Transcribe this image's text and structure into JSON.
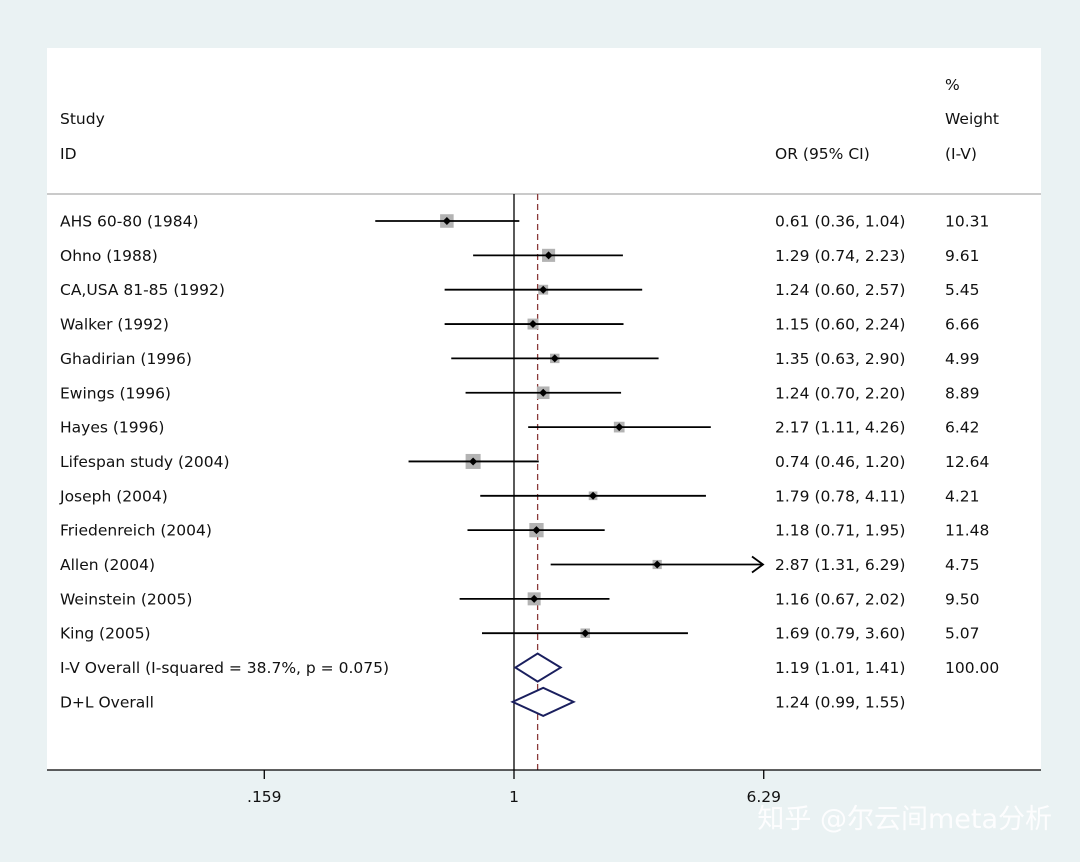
{
  "chart_data": {
    "type": "forest",
    "header": {
      "study_line1": "Study",
      "study_line2": "ID",
      "or_label": "OR (95% CI)",
      "weight_line1": "%",
      "weight_line2": "Weight",
      "weight_line3": "(I-V)"
    },
    "studies": [
      {
        "id": "AHS 60-80 (1984)",
        "or": 0.61,
        "lo": 0.36,
        "hi": 1.04,
        "ci_text": "0.61 (0.36, 1.04)",
        "weight": "10.31"
      },
      {
        "id": "Ohno (1988)",
        "or": 1.29,
        "lo": 0.74,
        "hi": 2.23,
        "ci_text": "1.29 (0.74, 2.23)",
        "weight": "9.61"
      },
      {
        "id": "CA,USA 81-85 (1992)",
        "or": 1.24,
        "lo": 0.6,
        "hi": 2.57,
        "ci_text": "1.24 (0.60, 2.57)",
        "weight": "5.45"
      },
      {
        "id": "Walker (1992)",
        "or": 1.15,
        "lo": 0.6,
        "hi": 2.24,
        "ci_text": "1.15 (0.60, 2.24)",
        "weight": "6.66"
      },
      {
        "id": "Ghadirian (1996)",
        "or": 1.35,
        "lo": 0.63,
        "hi": 2.9,
        "ci_text": "1.35 (0.63, 2.90)",
        "weight": "4.99"
      },
      {
        "id": "Ewings (1996)",
        "or": 1.24,
        "lo": 0.7,
        "hi": 2.2,
        "ci_text": "1.24 (0.70, 2.20)",
        "weight": "8.89"
      },
      {
        "id": "Hayes (1996)",
        "or": 2.17,
        "lo": 1.11,
        "hi": 4.26,
        "ci_text": "2.17 (1.11, 4.26)",
        "weight": "6.42"
      },
      {
        "id": "Lifespan study (2004)",
        "or": 0.74,
        "lo": 0.46,
        "hi": 1.2,
        "ci_text": "0.74 (0.46, 1.20)",
        "weight": "12.64"
      },
      {
        "id": "Joseph (2004)",
        "or": 1.79,
        "lo": 0.78,
        "hi": 4.11,
        "ci_text": "1.79 (0.78, 4.11)",
        "weight": "4.21"
      },
      {
        "id": "Friedenreich (2004)",
        "or": 1.18,
        "lo": 0.71,
        "hi": 1.95,
        "ci_text": "1.18 (0.71, 1.95)",
        "weight": "11.48"
      },
      {
        "id": "Allen (2004)",
        "or": 2.87,
        "lo": 1.31,
        "hi": 6.29,
        "ci_text": "2.87 (1.31, 6.29)",
        "weight": "4.75"
      },
      {
        "id": "Weinstein (2005)",
        "or": 1.16,
        "lo": 0.67,
        "hi": 2.02,
        "ci_text": "1.16 (0.67, 2.02)",
        "weight": "9.50"
      },
      {
        "id": "King (2005)",
        "or": 1.69,
        "lo": 0.79,
        "hi": 3.6,
        "ci_text": "1.69 (0.79, 3.60)",
        "weight": "5.07"
      }
    ],
    "overall": [
      {
        "id": "I-V Overall  (I-squared = 38.7%, p = 0.075)",
        "or": 1.19,
        "lo": 1.01,
        "hi": 1.41,
        "ci_text": "1.19 (1.01, 1.41)",
        "weight": "100.00"
      },
      {
        "id": "D+L Overall",
        "or": 1.24,
        "lo": 0.99,
        "hi": 1.55,
        "ci_text": "1.24 (0.99, 1.55)",
        "weight": ""
      }
    ],
    "x_axis": {
      "scale": "log",
      "null_value": 1,
      "tick_values": [
        0.159,
        1,
        6.29
      ],
      "tick_labels": [
        ".159",
        "1",
        "6.29"
      ]
    },
    "reference_line_value": 1.19,
    "colors": {
      "ci_line": "#000000",
      "weight_box": "#b3b3b3",
      "point": "#000000",
      "diamond": "#1a1f5e",
      "reference_line": "#8b3a3a",
      "null_line": "#000000"
    }
  },
  "watermark": "知乎 @尔云间meta分析"
}
